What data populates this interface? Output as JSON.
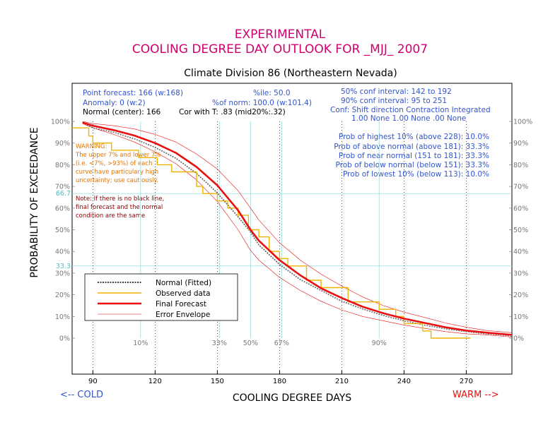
{
  "header": {
    "line1": "EXPERIMENTAL",
    "line2": "COOLING DEGREE DAY OUTLOOK FOR _MJJ_ 2007",
    "subtitle": "Climate Division 86 (Northeastern Nevada)"
  },
  "info": {
    "point_forecast": "Point forecast: 166 (w:168)",
    "ile": "%ile: 50.0",
    "conf50": "50% conf interval: 142 to 192",
    "anomaly": "Anomaly: 0 (w:2)",
    "pct_norm": "%of norm: 100.0 (w:101.4)",
    "conf90": "90% conf interval: 95 to 251",
    "normal_center": "Normal (center): 166",
    "cor": "Cor with T: .83 (mid20%:.32)",
    "conf_header": "Conf: Shift direction   Contraction   Integrated",
    "conf_values": "1.00 None       1.00 None  .00 None"
  },
  "probs": [
    "Prob of highest 10% (above 228): 10.0%",
    "Prob of above normal (above 181): 33.3%",
    "Prob of near normal (151 to 181): 33.3%",
    "Prob of below normal (below 151): 33.3%",
    "Prob of lowest 10% (below 113): 10.0%"
  ],
  "warning": {
    "title": "WARNING:",
    "lines": [
      "The upper 7% and lower 7%",
      "(i.e. <7%, >93%) of each",
      "curve have particulary high",
      "uncertainty; use cautiously."
    ]
  },
  "note": {
    "lines": [
      "Note: If there is no black line,",
      "final forecast and  the normal",
      "condition are the same"
    ]
  },
  "legend": {
    "normal": "Normal (Fitted)",
    "observed": "Observed data",
    "final": "Final Forecast",
    "envelope": "Error Envelope"
  },
  "bottom": {
    "cold": "<-- COLD",
    "warm": "WARM -->"
  },
  "colors": {
    "title": "#d0006f",
    "info": "#3355cc",
    "normal": "#000000",
    "observed": "#f0b400",
    "final": "#e81010",
    "envelope": "#e81010",
    "gridline": "#99dddd"
  },
  "chart_data": {
    "type": "line",
    "xlabel": "COOLING DEGREE DAYS",
    "ylabel": "PROBABILITY OF EXCEEDANCE",
    "xlim": [
      80,
      292
    ],
    "ylim": [
      0,
      100
    ],
    "x_ticks": [
      "90",
      "120",
      "150",
      "180",
      "210",
      "240",
      "270"
    ],
    "y_ticks": [
      "100%",
      "90%",
      "80%",
      "70%",
      "60%",
      "50%",
      "40%",
      "30%",
      "20%",
      "10%",
      "0%"
    ],
    "percentile_marks": [
      {
        "label": "10%",
        "x": 113
      },
      {
        "label": "33%",
        "x": 151
      },
      {
        "label": "50%",
        "x": 166
      },
      {
        "label": "67%",
        "x": 181
      },
      {
        "label": "90%",
        "x": 228
      }
    ],
    "ref_lines": {
      "y": [
        66.7,
        33.3
      ],
      "labels": [
        "66.7",
        "33.3"
      ]
    },
    "series": [
      {
        "name": "Normal (Fitted)",
        "x": [
          85,
          90,
          100,
          110,
          120,
          130,
          140,
          150,
          160,
          166,
          170,
          180,
          190,
          200,
          210,
          220,
          230,
          240,
          250,
          260,
          270,
          280,
          292
        ],
        "y": [
          99.5,
          97,
          95,
          92,
          88,
          83,
          76,
          67,
          56,
          49,
          43,
          34,
          27,
          22,
          17,
          13.5,
          10.5,
          8,
          6,
          4.3,
          3,
          2,
          1
        ]
      },
      {
        "name": "Observed data",
        "x": [
          80,
          88,
          88,
          90,
          90,
          99,
          99,
          112,
          112,
          121,
          121,
          128,
          128,
          140,
          140,
          143,
          143,
          150,
          150,
          155,
          155,
          160,
          160,
          165,
          165,
          170,
          170,
          175,
          175,
          180,
          180,
          184,
          184,
          193,
          193,
          200,
          200,
          213,
          213,
          228,
          228,
          236,
          236,
          240,
          240,
          249,
          249,
          253,
          253,
          272
        ],
        "y": [
          97,
          97,
          93.3,
          93.3,
          90,
          90,
          86.7,
          86.7,
          83.3,
          83.3,
          80,
          80,
          76.7,
          76.7,
          70,
          70,
          66.7,
          66.7,
          63.3,
          63.3,
          60,
          60,
          56.7,
          56.7,
          50,
          50,
          46.7,
          46.7,
          40,
          40,
          36.7,
          36.7,
          33.3,
          33.3,
          26.7,
          26.7,
          23.3,
          23.3,
          16.7,
          16.7,
          13.3,
          13.3,
          10,
          10,
          6.7,
          6.7,
          3.3,
          3.3,
          0,
          0
        ]
      },
      {
        "name": "Final Forecast",
        "x": [
          85,
          90,
          100,
          110,
          120,
          130,
          140,
          150,
          160,
          166,
          170,
          180,
          190,
          200,
          210,
          220,
          230,
          240,
          250,
          260,
          270,
          280,
          292
        ],
        "y": [
          99.5,
          98,
          96,
          93.5,
          90,
          85.5,
          79,
          70.5,
          59,
          50,
          45,
          36,
          29,
          23,
          18.5,
          14.5,
          11.5,
          9,
          7,
          5,
          3.5,
          2.5,
          1.5
        ]
      },
      {
        "name": "Error Envelope",
        "x": [
          85,
          90,
          100,
          110,
          120,
          130,
          140,
          150,
          160,
          166,
          170,
          180,
          190,
          200,
          210,
          220,
          230,
          240,
          250,
          260,
          270,
          280,
          292
        ],
        "y": [
          100,
          99,
          98,
          96.5,
          94,
          90.5,
          85,
          78,
          68,
          60,
          54.5,
          44,
          36,
          29.5,
          24,
          19,
          15,
          12,
          9.5,
          7,
          5,
          3.5,
          2.5
        ]
      },
      {
        "name": "Error Envelope",
        "x": [
          85,
          90,
          100,
          110,
          120,
          130,
          140,
          150,
          160,
          166,
          170,
          180,
          190,
          200,
          210,
          220,
          230,
          240,
          250,
          260,
          270,
          280,
          292
        ],
        "y": [
          99,
          97,
          94,
          90.5,
          86,
          80.5,
          73,
          63,
          50,
          40.5,
          36,
          28,
          22,
          17,
          13,
          10,
          8,
          6,
          4.5,
          3,
          2,
          1.5,
          0.5
        ]
      }
    ]
  }
}
